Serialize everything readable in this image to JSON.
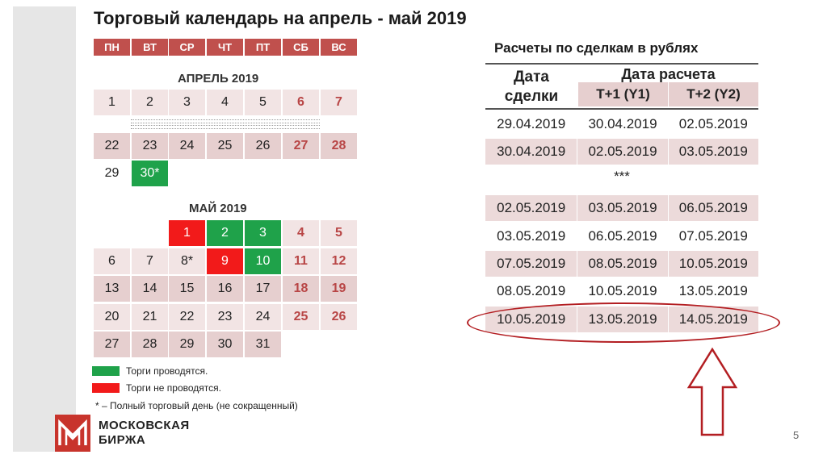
{
  "title": "Торговый календарь на апрель - май 2019",
  "weekdays": [
    "ПН",
    "ВТ",
    "СР",
    "ЧТ",
    "ПТ",
    "СБ",
    "ВС"
  ],
  "april": {
    "title": "АПРЕЛЬ 2019",
    "days": [
      "1",
      "2",
      "3",
      "4",
      "5",
      "6",
      "7",
      "22",
      "23",
      "24",
      "25",
      "26",
      "27",
      "28",
      "29",
      "30*"
    ]
  },
  "may": {
    "title": "МАЙ 2019",
    "days": [
      "1",
      "2",
      "3",
      "4",
      "5",
      "6",
      "7",
      "8*",
      "9",
      "10",
      "11",
      "12",
      "13",
      "14",
      "15",
      "16",
      "17",
      "18",
      "19",
      "20",
      "21",
      "22",
      "23",
      "24",
      "25",
      "26",
      "27",
      "28",
      "29",
      "30",
      "31"
    ]
  },
  "legend": {
    "trading": "Торги проводятся.",
    "no_trading": "Торги не проводятся.",
    "note": "* – Полный торговый день (не сокращенный)"
  },
  "colors": {
    "green": "#1fa24a",
    "red": "#f21a1a",
    "header": "#c0504d",
    "brand": "#c8342c"
  },
  "logo": {
    "line1": "МОСКОВСКАЯ",
    "line2": "БИРЖА"
  },
  "page_number": "5",
  "settlement": {
    "title": "Расчеты по сделкам в рублях",
    "col_trade_date_1": "Дата",
    "col_trade_date_2": "сделки",
    "col_settle": "Дата расчета",
    "col_t1": "T+1 (Y1)",
    "col_t2": "T+2 (Y2)",
    "rows": [
      [
        "29.04.2019",
        "30.04.2019",
        "02.05.2019"
      ],
      [
        "30.04.2019",
        "02.05.2019",
        "03.05.2019"
      ],
      [
        "02.05.2019",
        "03.05.2019",
        "06.05.2019"
      ],
      [
        "03.05.2019",
        "06.05.2019",
        "07.05.2019"
      ],
      [
        "07.05.2019",
        "08.05.2019",
        "10.05.2019"
      ],
      [
        "08.05.2019",
        "10.05.2019",
        "13.05.2019"
      ],
      [
        "10.05.2019",
        "13.05.2019",
        "14.05.2019"
      ]
    ],
    "separator": "***"
  }
}
